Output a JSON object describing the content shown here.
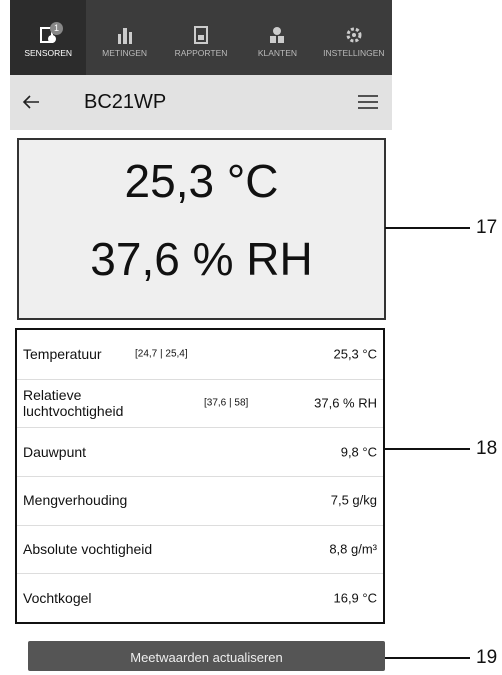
{
  "tabs": [
    {
      "label": "SENSOREN",
      "badge": 1
    },
    {
      "label": "METINGEN"
    },
    {
      "label": "RAPPORTEN"
    },
    {
      "label": "KLANTEN"
    },
    {
      "label": "INSTELLINGEN"
    }
  ],
  "header": {
    "title": "BC21WP"
  },
  "display": {
    "lines": [
      "25,3 °C",
      "37,6 % RH"
    ]
  },
  "table": {
    "rows": [
      {
        "label": "Temperatuur",
        "range": "[24,7 | 25,4]",
        "value": "25,3 °C"
      },
      {
        "label": "Relatieve luchtvochtigheid",
        "range": "[37,6 | 58]",
        "value": "37,6 % RH"
      },
      {
        "label": "Dauwpunt",
        "value": "9,8 °C"
      },
      {
        "label": "Mengverhouding",
        "value": "7,5 g/kg"
      },
      {
        "label": "Absolute vochtigheid",
        "value": "8,8 g/m³"
      },
      {
        "label": "Vochtkogel",
        "value": "16,9 °C"
      }
    ]
  },
  "button": {
    "label": "Meetwaarden actualiseren"
  },
  "callouts": [
    "17",
    "18",
    "19"
  ]
}
